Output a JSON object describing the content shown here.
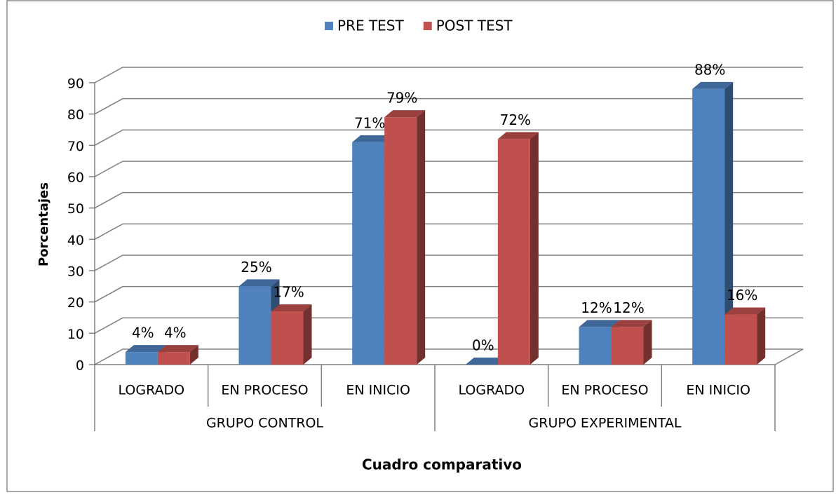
{
  "chart_data": {
    "type": "bar3d",
    "x_label": "Cuadro comparativo",
    "y_label": "Porcentajes",
    "categories": [
      "LOGRADO",
      "EN PROCESO",
      "EN INICIO",
      "LOGRADO",
      "EN PROCESO",
      "EN INICIO"
    ],
    "groups": [
      "GRUPO CONTROL",
      "GRUPO EXPERIMENTAL"
    ],
    "series": [
      {
        "name": "PRE TEST",
        "color": "#4f81bd",
        "values": [
          4,
          25,
          71,
          0,
          12,
          88
        ],
        "value_labels": [
          "4%",
          "25%",
          "71%",
          "0%",
          "12%",
          "88%"
        ]
      },
      {
        "name": "POST TEST",
        "color": "#c0504d",
        "values": [
          4,
          17,
          79,
          72,
          12,
          16
        ],
        "value_labels": [
          "4%",
          "17%",
          "79%",
          "72%",
          "12%",
          "16%"
        ]
      }
    ],
    "ylim": [
      0,
      90
    ],
    "yticks": [
      0,
      10,
      20,
      30,
      40,
      50,
      60,
      70,
      80,
      90
    ],
    "grid": true,
    "legend": "top"
  }
}
